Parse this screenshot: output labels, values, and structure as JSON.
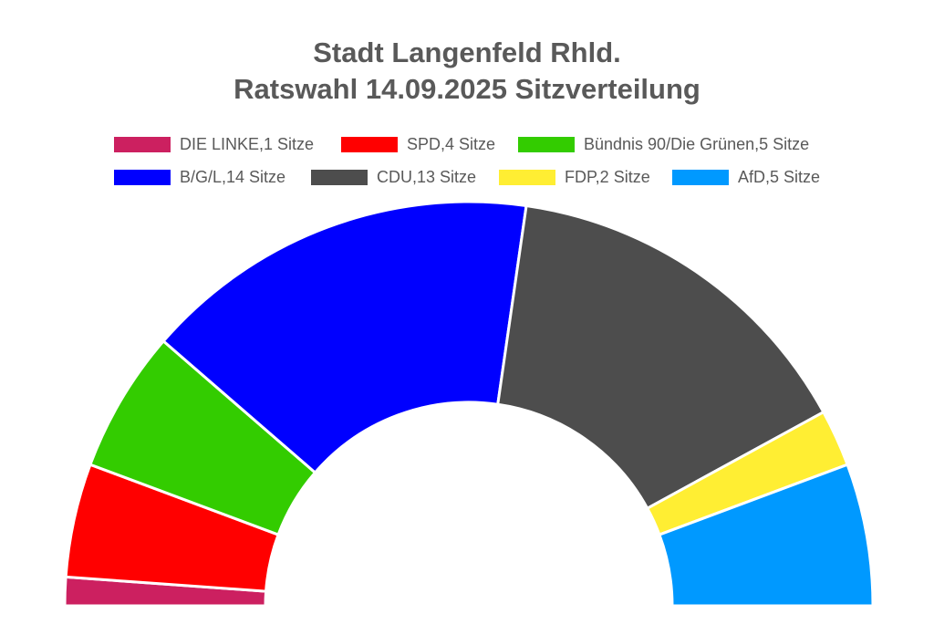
{
  "chart_data": {
    "type": "pie",
    "variant": "half-donut",
    "title_lines": [
      "Stadt Langenfeld Rhld.",
      "Ratswahl 14.09.2025 Sitzverteilung"
    ],
    "legend_position": "top",
    "slices": [
      {
        "label": "DIE LINKE,1 Sitze",
        "name": "DIE LINKE",
        "value": 1,
        "color": "#cc2060"
      },
      {
        "label": "SPD,4 Sitze",
        "name": "SPD",
        "value": 4,
        "color": "#ff0000"
      },
      {
        "label": "Bündnis 90/Die Grünen,5 Sitze",
        "name": "Bündnis 90/Die Grünen",
        "value": 5,
        "color": "#33cc00"
      },
      {
        "label": "B/G/L,14 Sitze",
        "name": "B/G/L",
        "value": 14,
        "color": "#0000ff"
      },
      {
        "label": "CDU,13 Sitze",
        "name": "CDU",
        "value": 13,
        "color": "#4d4d4d"
      },
      {
        "label": "FDP,2 Sitze",
        "name": "FDP",
        "value": 2,
        "color": "#ffee33"
      },
      {
        "label": "AfD,5 Sitze",
        "name": "AfD",
        "value": 5,
        "color": "#0099ff"
      }
    ]
  }
}
